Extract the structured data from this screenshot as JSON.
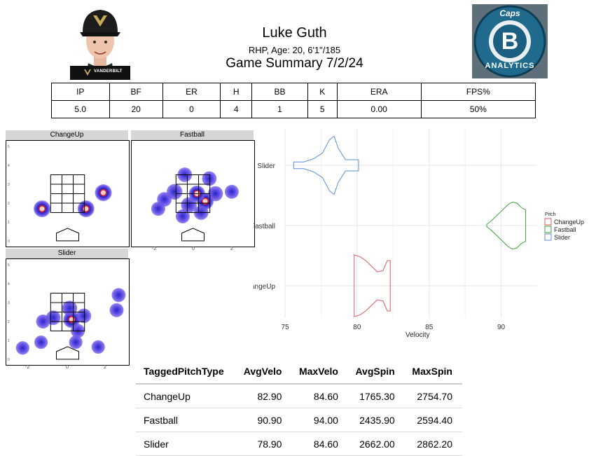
{
  "header": {
    "player_name": "Luke Guth",
    "player_info": "RHP, Age: 20, 6'1\"/185",
    "game_summary": "Game Summary 7/2/24",
    "headshot_caption": "VANDERBILT",
    "logo_top_text": "Caps",
    "logo_letter": "B",
    "logo_bottom_text": "ANALYTICS"
  },
  "stats_table": {
    "headers": [
      "IP",
      "BF",
      "ER",
      "H",
      "BB",
      "K",
      "ERA",
      "FPS%"
    ],
    "values": [
      "5.0",
      "20",
      "0",
      "4",
      "1",
      "5",
      "0.00",
      "50%"
    ]
  },
  "location_panels": {
    "titles": [
      "ChangeUp",
      "Fastball",
      "Slider"
    ],
    "x_ticks": [
      "-2",
      "0",
      "2"
    ]
  },
  "chart_data": [
    {
      "type": "heatmap",
      "title": "ChangeUp",
      "x_range": [
        -3.0,
        3.0
      ],
      "y_range": [
        -0.3,
        5.3
      ],
      "y_ticks": [
        "0",
        "1",
        "2",
        "3",
        "4",
        "5"
      ],
      "points": [
        {
          "x": -1.25,
          "y": 1.7,
          "density": 1.0
        },
        {
          "x": 0.9,
          "y": 1.7,
          "density": 1.0
        },
        {
          "x": 1.75,
          "y": 2.55,
          "density": 1.0
        }
      ]
    },
    {
      "type": "heatmap",
      "title": "Fastball",
      "x_range": [
        -3.0,
        3.0
      ],
      "y_range": [
        -0.3,
        5.3
      ],
      "y_ticks": [],
      "points": [
        {
          "x": -0.4,
          "y": 3.5,
          "density": 0.6
        },
        {
          "x": 0.8,
          "y": 3.3,
          "density": 0.6
        },
        {
          "x": -0.9,
          "y": 2.6,
          "density": 0.8
        },
        {
          "x": 0.6,
          "y": 2.1,
          "density": 1.0
        },
        {
          "x": 0.2,
          "y": 2.5,
          "density": 0.9
        },
        {
          "x": -0.2,
          "y": 1.9,
          "density": 0.8
        },
        {
          "x": 1.1,
          "y": 2.5,
          "density": 0.7
        },
        {
          "x": -1.4,
          "y": 2.2,
          "density": 0.6
        },
        {
          "x": 0.4,
          "y": 1.5,
          "density": 0.6
        },
        {
          "x": 1.9,
          "y": 2.6,
          "density": 0.5
        },
        {
          "x": -1.7,
          "y": 1.7,
          "density": 0.5
        },
        {
          "x": -0.5,
          "y": 1.3,
          "density": 0.5
        }
      ]
    },
    {
      "type": "heatmap",
      "title": "Slider",
      "x_range": [
        -3.0,
        3.0
      ],
      "y_range": [
        -0.3,
        5.3
      ],
      "y_ticks": [
        "0",
        "1",
        "2",
        "3",
        "4",
        "5"
      ],
      "points": [
        {
          "x": 0.2,
          "y": 2.1,
          "density": 1.0
        },
        {
          "x": 0.1,
          "y": 2.7,
          "density": 0.7
        },
        {
          "x": -0.7,
          "y": 2.2,
          "density": 0.6
        },
        {
          "x": 0.8,
          "y": 2.3,
          "density": 0.6
        },
        {
          "x": -1.2,
          "y": 2.0,
          "density": 0.5
        },
        {
          "x": 0.5,
          "y": 1.5,
          "density": 0.5
        },
        {
          "x": 2.5,
          "y": 3.4,
          "density": 0.5
        },
        {
          "x": 2.4,
          "y": 2.6,
          "density": 0.5
        },
        {
          "x": -1.3,
          "y": 0.9,
          "density": 0.4
        },
        {
          "x": -2.2,
          "y": 0.6,
          "density": 0.4
        },
        {
          "x": 0.4,
          "y": 0.9,
          "density": 0.4
        },
        {
          "x": 1.5,
          "y": 0.65,
          "density": 0.4
        }
      ]
    },
    {
      "type": "violin",
      "title": "",
      "xlabel": "Velocity",
      "ylabel": "",
      "categories": [
        "ChangeUp",
        "Fastball",
        "Slider"
      ],
      "x_ticks": [
        75,
        80,
        85,
        90
      ],
      "xlim": [
        75.0,
        92.5
      ],
      "legend_title": "Pitch",
      "legend_position": "right",
      "grid": true,
      "series": [
        {
          "name": "ChangeUp",
          "color": "#e0595d",
          "min": 79.8,
          "max": 82.3,
          "density": [
            [
              79.8,
              0.55
            ],
            [
              80.2,
              0.52
            ],
            [
              80.6,
              0.45
            ],
            [
              81.0,
              0.35
            ],
            [
              81.4,
              0.25
            ],
            [
              81.8,
              0.27
            ],
            [
              82.1,
              0.45
            ],
            [
              82.3,
              0.45
            ]
          ]
        },
        {
          "name": "Fastball",
          "color": "#3da23a",
          "min": 89.0,
          "max": 91.7,
          "density": [
            [
              89.0,
              0.02
            ],
            [
              89.3,
              0.08
            ],
            [
              89.7,
              0.18
            ],
            [
              90.1,
              0.28
            ],
            [
              90.5,
              0.38
            ],
            [
              90.8,
              0.42
            ],
            [
              91.1,
              0.4
            ],
            [
              91.4,
              0.32
            ],
            [
              91.7,
              0.28
            ]
          ]
        },
        {
          "name": "Slider",
          "color": "#5b8fd4",
          "min": 75.6,
          "max": 80.1,
          "density": [
            [
              75.6,
              0.06
            ],
            [
              76.3,
              0.06
            ],
            [
              77.0,
              0.12
            ],
            [
              77.6,
              0.22
            ],
            [
              78.1,
              0.46
            ],
            [
              78.4,
              0.52
            ],
            [
              78.7,
              0.3
            ],
            [
              79.2,
              0.1
            ],
            [
              79.7,
              0.1
            ],
            [
              80.1,
              0.1
            ]
          ]
        }
      ]
    }
  ],
  "summary_table": {
    "headers": [
      "TaggedPitchType",
      "AvgVelo",
      "MaxVelo",
      "AvgSpin",
      "MaxSpin"
    ],
    "rows": [
      [
        "ChangeUp",
        "82.90",
        "84.60",
        "1765.30",
        "2754.70"
      ],
      [
        "Fastball",
        "90.90",
        "94.00",
        "2435.90",
        "2594.40"
      ],
      [
        "Slider",
        "78.90",
        "84.60",
        "2662.00",
        "2862.20"
      ]
    ]
  },
  "colors": {
    "heat_low": "#6a55e6",
    "heat_mid": "#2525c8",
    "heat_high": "#e0202a",
    "panel_title_bg": "#d6d6d6",
    "logo_bg": "#1a5f82"
  }
}
